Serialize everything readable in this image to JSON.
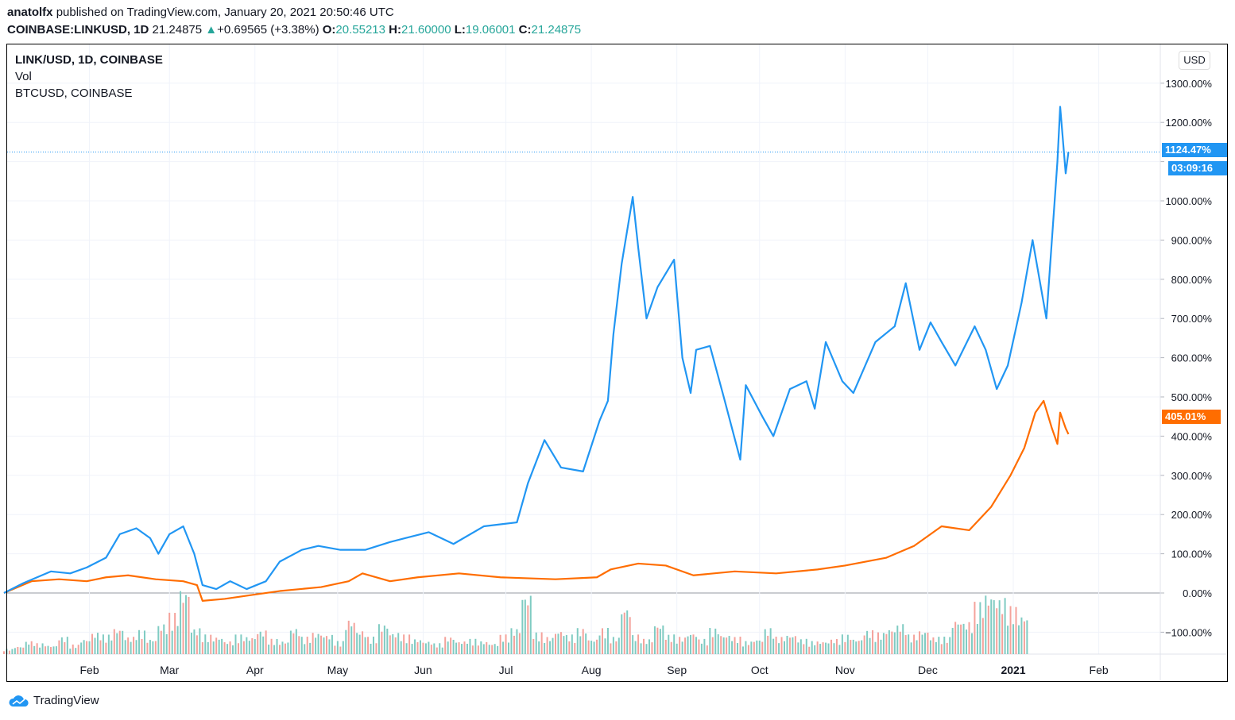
{
  "header": {
    "author": "anatolfx",
    "published": "published on TradingView.com, January 20, 2021 20:50:46 UTC",
    "symbol": "COINBASE:LINKUSD, 1D",
    "last": "21.24875",
    "change": "+0.69565 (+3.38%)",
    "o_label": "O:",
    "o": "20.55213",
    "h_label": "H:",
    "h": "21.60000",
    "l_label": "L:",
    "l": "19.06001",
    "c_label": "C:",
    "c": "21.24875"
  },
  "legend": [
    "LINK/USD, 1D, COINBASE",
    "Vol",
    "BTCUSD, COINBASE"
  ],
  "currency_button": "USD",
  "tags": {
    "link_value": "1124.47%",
    "countdown": "03:09:16",
    "btc_value": "405.01%"
  },
  "footer": {
    "brand": "TradingView"
  },
  "colors": {
    "link": "#2196f3",
    "btc": "#ff6d00",
    "vol_up": "#7fcbc2",
    "vol_down": "#f4a29b"
  },
  "chart_data": {
    "type": "line",
    "ylabel": "Percent change",
    "ylim": [
      -155,
      1390
    ],
    "yticks": [
      -100,
      0,
      100,
      200,
      300,
      400,
      500,
      600,
      700,
      800,
      900,
      1000,
      1100,
      1200,
      1300
    ],
    "ytick_labels": [
      "−100.00%",
      "0.00%",
      "100.00%",
      "200.00%",
      "300.00%",
      "400.00%",
      "500.00%",
      "600.00%",
      "700.00%",
      "800.00%",
      "900.00%",
      "1000.00%",
      "",
      "1200.00%",
      "1300.00%"
    ],
    "xticks": [
      {
        "day": 31,
        "label": "Feb"
      },
      {
        "day": 60,
        "label": "Mar"
      },
      {
        "day": 91,
        "label": "Apr"
      },
      {
        "day": 121,
        "label": "May"
      },
      {
        "day": 152,
        "label": "Jun"
      },
      {
        "day": 182,
        "label": "Jul"
      },
      {
        "day": 213,
        "label": "Aug"
      },
      {
        "day": 244,
        "label": "Sep"
      },
      {
        "day": 274,
        "label": "Oct"
      },
      {
        "day": 305,
        "label": "Nov"
      },
      {
        "day": 335,
        "label": "Dec"
      },
      {
        "day": 366,
        "label": "2021",
        "bold": true
      },
      {
        "day": 397,
        "label": "Feb"
      }
    ],
    "xlim_days": [
      -1,
      417
    ],
    "series": [
      {
        "name": "LINK/USD",
        "x": [
          0,
          7,
          17,
          24,
          30,
          37,
          42,
          48,
          53,
          56,
          60,
          65,
          69,
          72,
          77,
          82,
          88,
          95,
          100,
          108,
          114,
          122,
          131,
          140,
          154,
          163,
          174,
          186,
          190,
          196,
          202,
          210,
          216,
          219,
          221,
          224,
          228,
          230,
          233,
          237,
          243,
          246,
          249,
          251,
          256,
          261,
          267,
          269,
          275,
          279,
          285,
          291,
          294,
          298,
          304,
          308,
          316,
          323,
          327,
          332,
          336,
          340,
          345,
          352,
          356,
          360,
          364,
          369,
          373,
          378,
          382,
          383,
          385,
          386
        ],
        "y": [
          0,
          25,
          55,
          50,
          65,
          90,
          150,
          165,
          140,
          100,
          150,
          170,
          100,
          20,
          10,
          30,
          10,
          30,
          80,
          110,
          120,
          110,
          110,
          130,
          155,
          125,
          170,
          180,
          280,
          390,
          320,
          310,
          440,
          490,
          660,
          840,
          1010,
          880,
          700,
          780,
          850,
          600,
          510,
          620,
          630,
          500,
          340,
          530,
          450,
          400,
          520,
          540,
          470,
          640,
          540,
          510,
          640,
          680,
          790,
          620,
          690,
          640,
          580,
          680,
          620,
          520,
          580,
          740,
          900,
          700,
          1100,
          1240,
          1070,
          1124.47
        ]
      },
      {
        "name": "BTCUSD",
        "x": [
          0,
          10,
          20,
          30,
          37,
          45,
          55,
          65,
          70,
          72,
          80,
          90,
          100,
          115,
          125,
          130,
          140,
          150,
          165,
          180,
          200,
          215,
          220,
          230,
          240,
          250,
          265,
          280,
          295,
          305,
          320,
          330,
          340,
          350,
          358,
          365,
          370,
          374,
          377,
          380,
          382,
          383,
          385,
          386
        ],
        "y": [
          0,
          30,
          35,
          30,
          40,
          45,
          35,
          30,
          20,
          -20,
          -15,
          -5,
          5,
          15,
          30,
          50,
          30,
          40,
          50,
          40,
          35,
          40,
          60,
          75,
          70,
          45,
          55,
          50,
          60,
          70,
          90,
          120,
          170,
          160,
          220,
          300,
          370,
          460,
          490,
          420,
          380,
          460,
          420,
          405.01
        ]
      }
    ],
    "volume": {
      "step_days": 4,
      "values": [
        12,
        18,
        30,
        25,
        20,
        40,
        22,
        35,
        50,
        45,
        60,
        40,
        55,
        35,
        70,
        95,
        150,
        60,
        45,
        40,
        30,
        45,
        40,
        55,
        35,
        30,
        60,
        40,
        50,
        45,
        30,
        80,
        55,
        40,
        70,
        50,
        45,
        35,
        30,
        25,
        40,
        30,
        35,
        30,
        25,
        45,
        60,
        140,
        50,
        40,
        55,
        45,
        60,
        35,
        60,
        40,
        110,
        45,
        35,
        70,
        45,
        40,
        50,
        35,
        60,
        45,
        40,
        30,
        35,
        60,
        40,
        45,
        35,
        30,
        30,
        35,
        45,
        35,
        55,
        50,
        60,
        70,
        45,
        55,
        40,
        40,
        80,
        75,
        120,
        140,
        130,
        110,
        90
      ]
    }
  }
}
